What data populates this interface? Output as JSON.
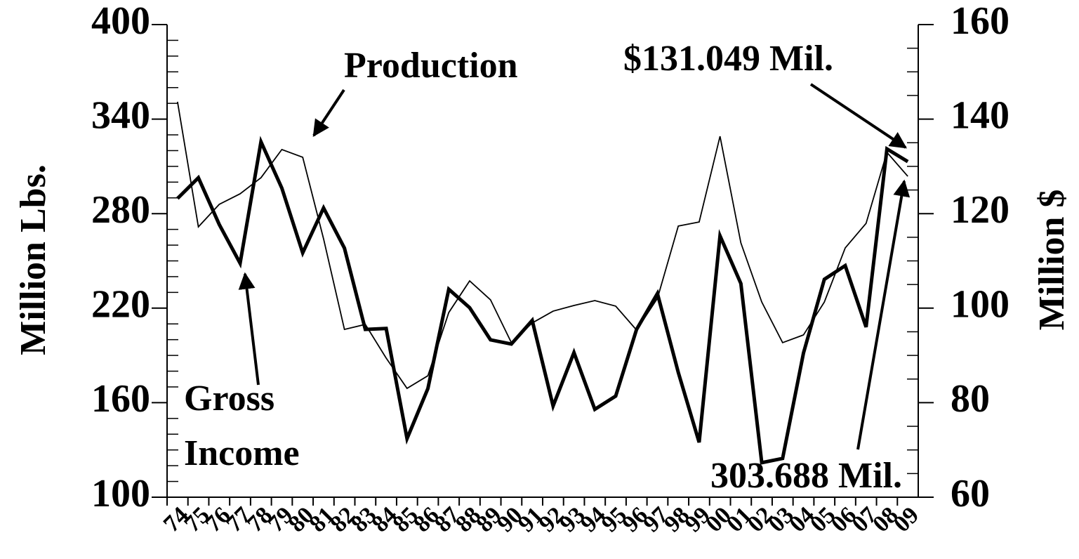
{
  "chart_data": {
    "type": "line",
    "categories": [
      "74",
      "75",
      "76",
      "77",
      "78",
      "79",
      "80",
      "81",
      "82",
      "83",
      "84",
      "85",
      "86",
      "87",
      "88",
      "89",
      "90",
      "91",
      "92",
      "93",
      "94",
      "95",
      "96",
      "97",
      "98",
      "99",
      "00",
      "01",
      "02",
      "03",
      "04",
      "05",
      "06",
      "07",
      "08",
      "09"
    ],
    "series": [
      {
        "color": "#000000",
        "values": [
          351,
          271.6,
          285.9,
          292.6,
          302.8,
          320.7,
          315.8,
          264,
          206.5,
          209.7,
          188.3,
          169.1,
          177.1,
          217.2,
          237.3,
          225.3,
          198.1,
          210.6,
          218.1,
          221.7,
          224.8,
          221.3,
          206.1,
          226.2,
          272.1,
          274.7,
          329.1,
          261.4,
          223.9,
          198.1,
          203,
          223.9,
          258.2,
          273.8,
          318.9,
          303.7
        ]
      },
      {
        "color": "#000000",
        "axis": "y2",
        "values": [
          123.2,
          127.6,
          117.7,
          109.5,
          135.2,
          125.4,
          111.7,
          121.2,
          112.7,
          95.5,
          95.7,
          72.4,
          83,
          104,
          100.1,
          93.3,
          92.4,
          97.4,
          79.3,
          90.6,
          78.6,
          81.4,
          95.5,
          103.1,
          86.4,
          71.6,
          115.3,
          105.2,
          67.3,
          68.2,
          90.5,
          106.1,
          109,
          96,
          133.7,
          131
        ]
      }
    ],
    "ylabel": "Million Lbs.",
    "y2label": "Million $",
    "ylim": [
      100,
      400
    ],
    "yticks": [
      100,
      160,
      220,
      280,
      340,
      400
    ],
    "yminorticks": [
      110,
      120,
      130,
      140,
      150,
      170,
      180,
      190,
      200,
      210,
      230,
      240,
      250,
      260,
      270,
      290,
      300,
      310,
      320,
      330,
      350,
      360,
      370,
      380,
      390
    ],
    "y2lim": [
      60,
      160
    ],
    "y2ticks": [
      60,
      80,
      100,
      120,
      140,
      160
    ],
    "y2minorticks": [
      65,
      70,
      75,
      85,
      90,
      95,
      105,
      110,
      115,
      125,
      130,
      135,
      145,
      150,
      155
    ],
    "annotations": [
      "Production",
      "Gross",
      "Income",
      "$131.049 Mil.",
      "303.688 Mil."
    ]
  }
}
